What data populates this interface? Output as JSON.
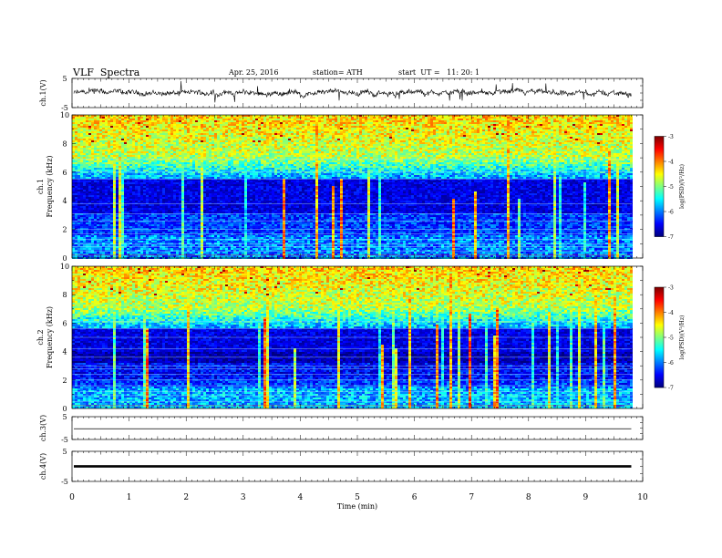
{
  "header": {
    "title": "VLF  Spectra",
    "date": "Apr. 25, 2016",
    "station": "station= ATH",
    "start": "start  UT =   11: 20: 1"
  },
  "colors": {
    "background": "#ffffff",
    "axis": "#000000",
    "spectrogram_low": "#0000ff",
    "spectrogram_high": "#ff0000"
  },
  "chart_data": [
    {
      "type": "line",
      "name": "ch1-waveform",
      "ylabel": "ch.1(V)",
      "ylim": [
        -5,
        5
      ],
      "yticks": [
        "5",
        "-5"
      ],
      "xlim": [
        0,
        10
      ]
    },
    {
      "type": "heatmap",
      "name": "ch1-spectrogram",
      "ylabel_top": "ch.1",
      "ylabel": "Frequency  (kHz)",
      "ylim": [
        0,
        10
      ],
      "yticks": [
        "0",
        "2",
        "4",
        "6",
        "8",
        "10"
      ],
      "xlim": [
        0,
        9.8
      ],
      "colorbar": {
        "label": "log(PSD)(V²/Hz)",
        "range": [
          -7,
          -3
        ],
        "ticks": [
          "-3",
          "-4",
          "-5",
          "-6",
          "-7"
        ]
      }
    },
    {
      "type": "heatmap",
      "name": "ch2-spectrogram",
      "ylabel_top": "ch.2",
      "ylabel": "Frequency  (kHz)",
      "ylim": [
        0,
        10
      ],
      "yticks": [
        "0",
        "2",
        "4",
        "6",
        "8",
        "10"
      ],
      "xlim": [
        0,
        9.8
      ],
      "colorbar": {
        "label": "log(PSD)(V²/Hz)",
        "range": [
          -7,
          -3
        ],
        "ticks": [
          "-3",
          "-4",
          "-5",
          "-6",
          "-7"
        ]
      }
    },
    {
      "type": "line",
      "name": "ch3-waveform",
      "ylabel": "ch.3(V)",
      "ylim": [
        -5,
        5
      ],
      "yticks": [
        "5",
        "-5"
      ],
      "xlim": [
        0,
        10
      ]
    },
    {
      "type": "line",
      "name": "ch4-waveform",
      "ylabel": "ch.4(V)",
      "ylim": [
        -5,
        5
      ],
      "yticks": [
        "5",
        "-5"
      ],
      "xlim": [
        0,
        10
      ],
      "xlabel": "Time  (min)",
      "xticks": [
        "0",
        "1",
        "2",
        "3",
        "4",
        "5",
        "6",
        "7",
        "8",
        "9",
        "10"
      ]
    }
  ]
}
